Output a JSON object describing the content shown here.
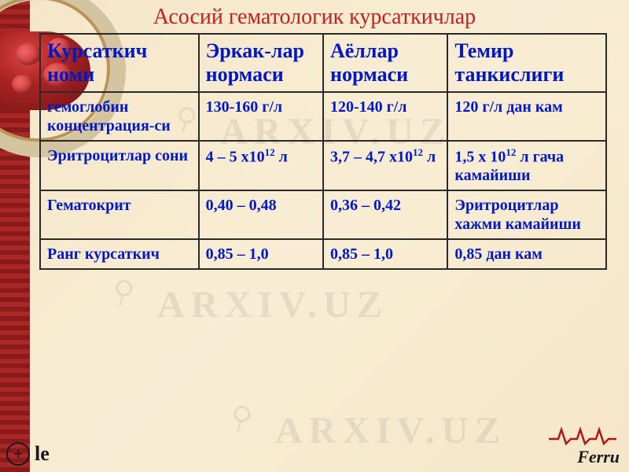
{
  "title": "Асосий гематологик курсаткичлар",
  "table": {
    "columns": [
      "Курсаткич номи",
      "Эркак-лар нормаси",
      "Аёллар нормаси",
      "Темир танкислиги"
    ],
    "rows": [
      {
        "name": "гемоглобин концентрация-си",
        "male": "130-160 г/л",
        "female": "120-140 г/л",
        "deficiency": "120 г/л дан кам"
      },
      {
        "name": "Эритроцитлар сони",
        "male_html": "4 – 5 х10<sup>12</sup> л",
        "female_html": "3,7 – 4,7 х10<sup>12</sup> л",
        "deficiency_html": "1,5 х 10<sup>12</sup> л гача камайиши"
      },
      {
        "name": "Гематокрит",
        "male": "0,40 – 0,48",
        "female": "0,36 – 0,42",
        "deficiency": "Эритроцитлар хажми камайиши"
      },
      {
        "name": "Ранг курсаткич",
        "male": "0,85 – 1,0",
        "female": "0,85 – 1,0",
        "deficiency": "0,85 дан кам"
      }
    ]
  },
  "footer": {
    "left_icon": "+",
    "left_text": "le",
    "right_text": "Ferru"
  },
  "watermark_text": "ARXIV.UZ",
  "colors": {
    "title": "#c41e1e",
    "text": "#0018c8",
    "border": "#2a2a2a",
    "background": "#f5e6c8",
    "strip": "#8b1a1a"
  },
  "style": {
    "title_fontsize": 28,
    "header_fontsize": 26,
    "cell_fontsize": 20,
    "font_family": "Times New Roman"
  }
}
